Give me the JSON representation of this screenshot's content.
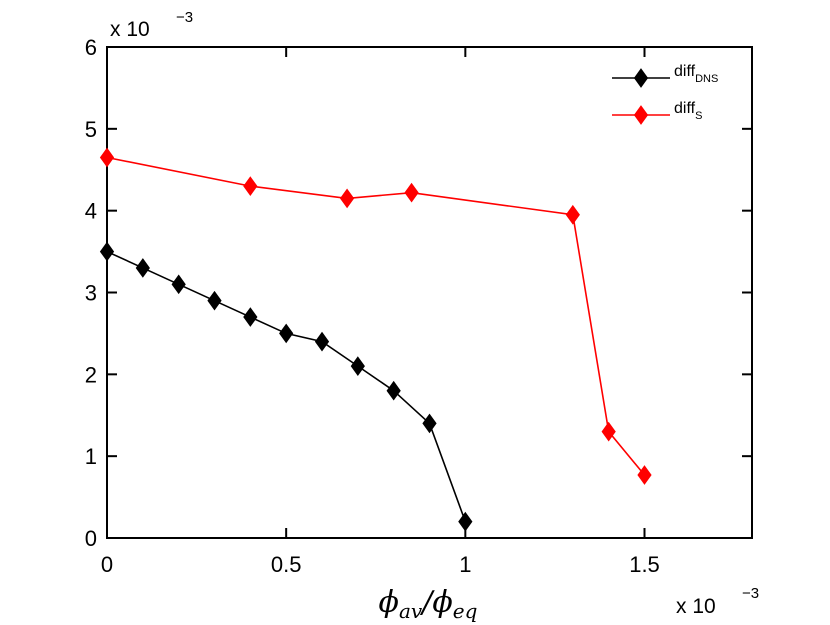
{
  "chart_data": {
    "type": "line",
    "title": "",
    "xlabel": "ϕav/ϕeq",
    "ylabel": "",
    "x_multiplier": "x 10",
    "x_multiplier_exp": "−3",
    "y_multiplier": "x 10",
    "y_multiplier_exp": "−3",
    "xlim": [
      0,
      1.8
    ],
    "ylim": [
      0,
      6
    ],
    "xticks": [
      0,
      0.5,
      1,
      1.5
    ],
    "xtick_labels": [
      "0",
      "0.5",
      "1",
      "1.5"
    ],
    "yticks": [
      0,
      1,
      2,
      3,
      4,
      5,
      6
    ],
    "ytick_labels": [
      "0",
      "1",
      "2",
      "3",
      "4",
      "5",
      "6"
    ],
    "grid": false,
    "legend_position": "top-right",
    "series": [
      {
        "name": "diff",
        "name_sub": "DNS",
        "color": "#000000",
        "marker": "diamond",
        "x": [
          0,
          0.1,
          0.2,
          0.3,
          0.4,
          0.5,
          0.6,
          0.7,
          0.8,
          0.9,
          1.0
        ],
        "y": [
          3.5,
          3.3,
          3.1,
          2.9,
          2.7,
          2.5,
          2.4,
          2.1,
          1.8,
          1.4,
          0.2
        ]
      },
      {
        "name": "diff",
        "name_sub": "S",
        "color": "#ff0000",
        "marker": "diamond",
        "x": [
          0,
          0.4,
          0.67,
          0.85,
          1.3,
          1.4,
          1.5
        ],
        "y": [
          4.65,
          4.3,
          4.15,
          4.22,
          3.95,
          1.3,
          0.77
        ]
      }
    ]
  }
}
